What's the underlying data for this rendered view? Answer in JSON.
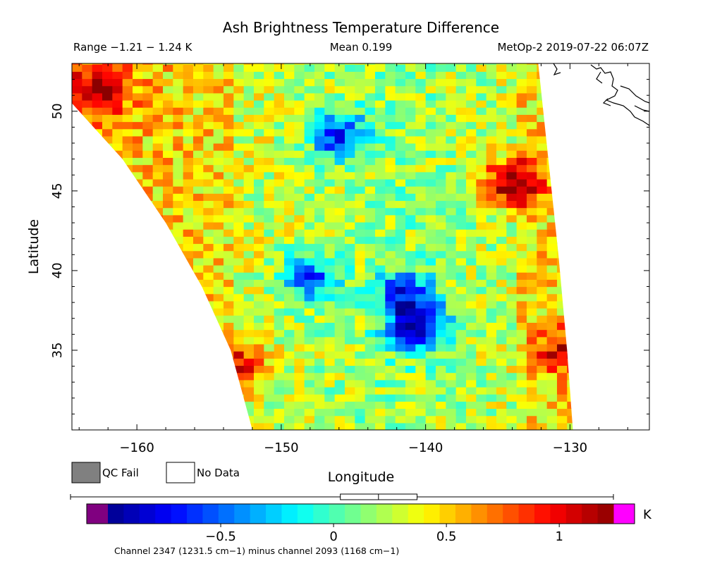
{
  "chart_data": {
    "type": "heatmap",
    "title": "Ash Brightness Temperature Difference",
    "header": {
      "range": "Range −1.21 − 1.24 K",
      "mean": "Mean 0.199",
      "source": "MetOp-2 2019-07-22 06:07Z"
    },
    "xlabel": "Longitude",
    "ylabel": "Latitude",
    "xlim": [
      -164.5,
      -124.5
    ],
    "ylim": [
      30.0,
      53.0
    ],
    "x_ticks": [
      {
        "value": -160,
        "label": "−160"
      },
      {
        "value": -150,
        "label": "−150"
      },
      {
        "value": -140,
        "label": "−140"
      },
      {
        "value": -130,
        "label": "−130"
      }
    ],
    "y_ticks": [
      {
        "value": 35,
        "label": "35"
      },
      {
        "value": 40,
        "label": "40"
      },
      {
        "value": 45,
        "label": "45"
      },
      {
        "value": 50,
        "label": "50"
      }
    ],
    "swath_edges": {
      "west": [
        [
          -164.5,
          50.5
        ],
        [
          -161.0,
          47.0
        ],
        [
          -158.0,
          43.0
        ],
        [
          -155.5,
          39.0
        ],
        [
          -153.5,
          35.0
        ],
        [
          -152.0,
          30.0
        ]
      ],
      "east": [
        [
          -132.2,
          53.0
        ],
        [
          -131.5,
          47.0
        ],
        [
          -130.8,
          41.0
        ],
        [
          -130.2,
          35.0
        ],
        [
          -129.8,
          30.0
        ]
      ]
    },
    "features": [
      {
        "kind": "hot",
        "lon": -134.0,
        "lat": 45.5,
        "value": 1.2
      },
      {
        "kind": "hot",
        "lon": -162.5,
        "lat": 51.5,
        "value": 0.95
      },
      {
        "kind": "hot",
        "lon": -153.0,
        "lat": 34.0,
        "value": 0.9
      },
      {
        "kind": "hot",
        "lon": -130.5,
        "lat": 35.0,
        "value": 0.8
      },
      {
        "kind": "cold",
        "lon": -140.5,
        "lat": 36.5,
        "value": -0.9
      },
      {
        "kind": "cold",
        "lon": -146.0,
        "lat": 48.5,
        "value": -0.7
      },
      {
        "kind": "cold",
        "lon": -141.5,
        "lat": 38.5,
        "value": -0.6
      },
      {
        "kind": "cold",
        "lon": -148.0,
        "lat": 39.5,
        "value": -0.55
      }
    ],
    "colorbar": {
      "min": -1.0,
      "max": 1.24,
      "unit": "K",
      "ticks": [
        {
          "value": -0.5,
          "label": "−0.5"
        },
        {
          "value": 0,
          "label": "0"
        },
        {
          "value": 0.5,
          "label": "0.5"
        },
        {
          "value": 1,
          "label": "1"
        }
      ],
      "under_color": "#800080",
      "over_color": "#ff00ff",
      "stops": [
        "#00008b",
        "#0000ff",
        "#0080ff",
        "#00ffff",
        "#80ff80",
        "#ffff00",
        "#ff8000",
        "#ff0000",
        "#8b0000"
      ],
      "caption": "Channel 2347 (1231.5 cm−1) minus channel 2093 (1168 cm−1)",
      "boxplot": {
        "min": -1.21,
        "q1": 0.03,
        "median": 0.199,
        "q3": 0.37,
        "max": 1.24
      }
    },
    "legend": [
      {
        "label": "QC Fail",
        "color": "#808080"
      },
      {
        "label": "No Data",
        "color": "#ffffff"
      }
    ]
  }
}
